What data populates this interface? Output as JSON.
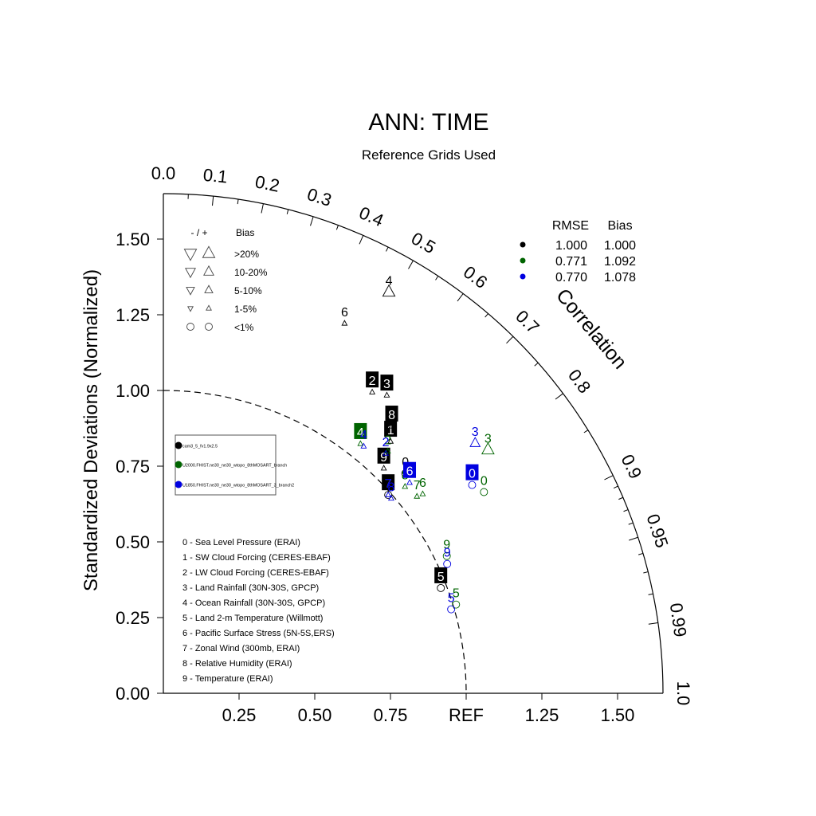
{
  "chart_data": {
    "type": "taylor",
    "title": "ANN: TIME",
    "subtitle": "Reference Grids Used",
    "ylabel": "Standardized Deviations (Normalized)",
    "correlation_label": "Correlation",
    "ref_label": "REF",
    "std_range": [
      0,
      1.65
    ],
    "y_ticks": [
      "0.00",
      "0.25",
      "0.50",
      "0.75",
      "1.00",
      "1.25",
      "1.50"
    ],
    "x_ticks": [
      "0.25",
      "0.50",
      "0.75",
      "REF",
      "1.25",
      "1.50"
    ],
    "corr_ticks": [
      "0.0",
      "0.1",
      "0.2",
      "0.3",
      "0.4",
      "0.5",
      "0.6",
      "0.7",
      "0.8",
      "0.9",
      "0.95",
      "0.99",
      "1.0"
    ],
    "colors": {
      "case1": "#000000",
      "case2": "#006400",
      "case3": "#0000e0"
    },
    "cases": [
      {
        "name": "cam3_5_fv1.9x2.5",
        "color": "#000000",
        "rmse": "1.000",
        "bias": "1.000"
      },
      {
        "name": "U2000.FHIST.ne30_ne30_wtopo_8thMOSART_branch",
        "color": "#006400",
        "rmse": "0.771",
        "bias": "1.092"
      },
      {
        "name": "U1850.FHIST.ne30_ne30_wtopo_8thMOSART_3_branch2",
        "color": "#0000e0",
        "rmse": "0.770",
        "bias": "1.078"
      }
    ],
    "stats_header": {
      "rmse": "RMSE",
      "bias": "Bias"
    },
    "bias_legend": {
      "header_sign": "- / +",
      "header_bias": "Bias",
      "rows": [
        {
          "label": ">20%",
          "marker": "triangle",
          "size": 4
        },
        {
          "label": "10-20%",
          "marker": "triangle",
          "size": 3
        },
        {
          "label": "5-10%",
          "marker": "triangle",
          "size": 2
        },
        {
          "label": "1-5%",
          "marker": "triangle",
          "size": 1
        },
        {
          "label": "<1%",
          "marker": "circle",
          "size": 2
        }
      ]
    },
    "variables": [
      "0 - Sea Level Pressure (ERAI)",
      "1 - SW Cloud Forcing (CERES-EBAF)",
      "2 - LW Cloud Forcing (CERES-EBAF)",
      "3 - Land Rainfall (30N-30S, GPCP)",
      "4 - Ocean Rainfall (30N-30S, GPCP)",
      "5 - Land 2-m Temperature (Willmott)",
      "6 - Pacific Surface Stress (5N-5S,ERS)",
      "7 - Zonal Wind (300mb, ERAI)",
      "8 - Relative Humidity (ERAI)",
      "9 - Temperature (ERAI)"
    ],
    "points": [
      {
        "case": 0,
        "id": "0",
        "corr": 0.74,
        "std": 1.08,
        "marker": "circle",
        "size": 2,
        "boxed": false
      },
      {
        "case": 0,
        "id": "1",
        "corr": 0.67,
        "std": 1.12,
        "marker": "up",
        "size": 1,
        "boxed": true
      },
      {
        "case": 0,
        "id": "2",
        "corr": 0.57,
        "std": 1.21,
        "marker": "up",
        "size": 1,
        "boxed": true
      },
      {
        "case": 0,
        "id": "3",
        "corr": 0.6,
        "std": 1.23,
        "marker": "up",
        "size": 1,
        "boxed": true
      },
      {
        "case": 0,
        "id": "4",
        "corr": 0.49,
        "std": 1.52,
        "marker": "up",
        "size": 4,
        "boxed": false
      },
      {
        "case": 0,
        "id": "5",
        "corr": 0.935,
        "std": 0.98,
        "marker": "circle",
        "size": 2,
        "boxed": true
      },
      {
        "case": 0,
        "id": "6",
        "corr": 0.44,
        "std": 1.36,
        "marker": "up",
        "size": 1,
        "boxed": false
      },
      {
        "case": 0,
        "id": "7",
        "corr": 0.75,
        "std": 0.99,
        "marker": "circle",
        "size": 2,
        "boxed": true
      },
      {
        "case": 0,
        "id": "8",
        "corr": 0.65,
        "std": 1.16,
        "marker": "up",
        "size": 1,
        "boxed": true
      },
      {
        "case": 0,
        "id": "9",
        "corr": 0.7,
        "std": 1.04,
        "marker": "up",
        "size": 1,
        "boxed": true
      },
      {
        "case": 1,
        "id": "0",
        "corr": 0.847,
        "std": 1.25,
        "marker": "circle",
        "size": 2,
        "boxed": false
      },
      {
        "case": 1,
        "id": "2",
        "corr": 0.68,
        "std": 1.09,
        "marker": "up",
        "size": 1,
        "boxed": false
      },
      {
        "case": 1,
        "id": "3",
        "corr": 0.8,
        "std": 1.34,
        "marker": "up",
        "size": 4,
        "boxed": false
      },
      {
        "case": 1,
        "id": "4",
        "corr": 0.62,
        "std": 1.05,
        "marker": "up",
        "size": 1,
        "boxed": true
      },
      {
        "case": 1,
        "id": "5",
        "corr": 0.957,
        "std": 1.01,
        "marker": "circle",
        "size": 2,
        "boxed": false
      },
      {
        "case": 1,
        "id": "6",
        "corr": 0.793,
        "std": 1.08,
        "marker": "up",
        "size": 1,
        "boxed": false
      },
      {
        "case": 1,
        "id": "7",
        "corr": 0.79,
        "std": 1.06,
        "marker": "up",
        "size": 1,
        "boxed": false
      },
      {
        "case": 1,
        "id": "8",
        "corr": 0.76,
        "std": 1.05,
        "marker": "up",
        "size": 1,
        "boxed": false
      },
      {
        "case": 1,
        "id": "9",
        "corr": 0.9,
        "std": 1.04,
        "marker": "circle",
        "size": 2,
        "boxed": false
      },
      {
        "case": 2,
        "id": "0",
        "corr": 0.829,
        "std": 1.23,
        "marker": "circle",
        "size": 2,
        "boxed": true
      },
      {
        "case": 2,
        "id": "2",
        "corr": 0.68,
        "std": 1.08,
        "marker": "up",
        "size": 1,
        "boxed": false
      },
      {
        "case": 2,
        "id": "3",
        "corr": 0.78,
        "std": 1.32,
        "marker": "up",
        "size": 3,
        "boxed": false
      },
      {
        "case": 2,
        "id": "4",
        "corr": 0.63,
        "std": 1.05,
        "marker": "up",
        "size": 1,
        "boxed": false
      },
      {
        "case": 2,
        "id": "5",
        "corr": 0.96,
        "std": 0.99,
        "marker": "circle",
        "size": 2,
        "boxed": false
      },
      {
        "case": 2,
        "id": "6",
        "corr": 0.76,
        "std": 1.07,
        "marker": "up",
        "size": 1,
        "boxed": true
      },
      {
        "case": 2,
        "id": "7",
        "corr": 0.75,
        "std": 0.99,
        "marker": "up",
        "size": 1,
        "boxed": false
      },
      {
        "case": 2,
        "id": "8",
        "corr": 0.76,
        "std": 0.99,
        "marker": "up",
        "size": 1,
        "boxed": false
      },
      {
        "case": 2,
        "id": "9",
        "corr": 0.91,
        "std": 1.03,
        "marker": "circle",
        "size": 2,
        "boxed": false
      }
    ]
  }
}
